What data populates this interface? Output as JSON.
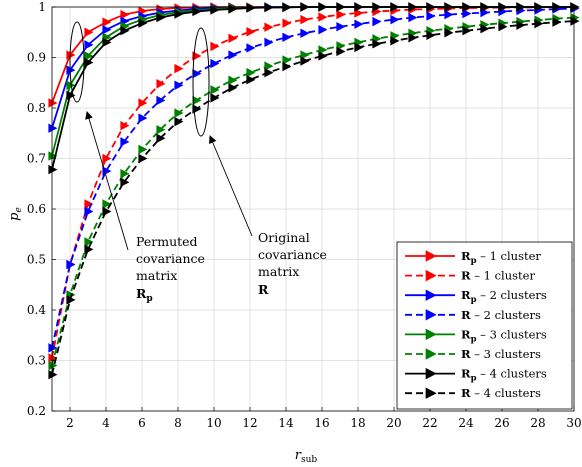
{
  "chart_data": {
    "type": "line",
    "xlabel": "r",
    "xlabel_sub": "sub",
    "ylabel": "p",
    "ylabel_sub": "e",
    "xlim": [
      1,
      30
    ],
    "ylim": [
      0.2,
      1.0
    ],
    "xticks": [
      2,
      4,
      6,
      8,
      10,
      12,
      14,
      16,
      18,
      20,
      22,
      24,
      26,
      28,
      30
    ],
    "yticks": [
      0.2,
      0.3,
      0.4,
      0.5,
      0.6,
      0.7,
      0.8,
      0.9,
      1
    ],
    "ytick_labels": [
      "0.2",
      "0.3",
      "0.4",
      "0.5",
      "0.6",
      "0.7",
      "0.8",
      "0.9",
      "1"
    ],
    "grid": true,
    "legend_position": "bottom-right",
    "x": [
      1,
      2,
      3,
      4,
      5,
      6,
      7,
      8,
      9,
      10,
      11,
      12,
      13,
      14,
      15,
      16,
      17,
      18,
      19,
      20,
      21,
      22,
      23,
      24,
      25,
      26,
      27,
      28,
      29,
      30
    ],
    "series": [
      {
        "name_bold": "R",
        "name_sub": "p",
        "name_rest": " – 1 cluster",
        "color": "#ff0000",
        "dash": false,
        "values": [
          0.81,
          0.905,
          0.95,
          0.97,
          0.985,
          0.992,
          0.996,
          0.998,
          0.999,
          1,
          1,
          1,
          1,
          1,
          1,
          1,
          1,
          1,
          1,
          1,
          1,
          1,
          1,
          1,
          1,
          1,
          1,
          1,
          1,
          1
        ]
      },
      {
        "name_bold": "R",
        "name_sub": "",
        "name_rest": " – 1 cluster",
        "color": "#ff0000",
        "dash": true,
        "values": [
          0.305,
          0.49,
          0.61,
          0.7,
          0.765,
          0.81,
          0.848,
          0.878,
          0.903,
          0.922,
          0.938,
          0.951,
          0.96,
          0.968,
          0.975,
          0.98,
          0.985,
          0.988,
          0.991,
          0.993,
          0.995,
          0.996,
          0.997,
          0.998,
          0.998,
          0.999,
          0.999,
          0.999,
          1,
          1
        ]
      },
      {
        "name_bold": "R",
        "name_sub": "p",
        "name_rest": " – 2 clusters",
        "color": "#0000ff",
        "dash": false,
        "values": [
          0.76,
          0.875,
          0.925,
          0.955,
          0.972,
          0.982,
          0.989,
          0.993,
          0.996,
          0.998,
          0.999,
          0.999,
          1,
          1,
          1,
          1,
          1,
          1,
          1,
          1,
          1,
          1,
          1,
          1,
          1,
          1,
          1,
          1,
          1,
          1
        ]
      },
      {
        "name_bold": "R",
        "name_sub": "",
        "name_rest": " – 2 clusters",
        "color": "#0000ff",
        "dash": true,
        "values": [
          0.325,
          0.49,
          0.595,
          0.675,
          0.733,
          0.78,
          0.815,
          0.845,
          0.868,
          0.888,
          0.905,
          0.919,
          0.93,
          0.94,
          0.948,
          0.955,
          0.961,
          0.966,
          0.971,
          0.975,
          0.979,
          0.982,
          0.985,
          0.987,
          0.989,
          0.991,
          0.993,
          0.994,
          0.996,
          0.997
        ]
      },
      {
        "name_bold": "R",
        "name_sub": "p",
        "name_rest": " – 3 clusters",
        "color": "#008000",
        "dash": false,
        "values": [
          0.705,
          0.845,
          0.903,
          0.94,
          0.962,
          0.975,
          0.984,
          0.99,
          0.993,
          0.996,
          0.998,
          0.999,
          0.999,
          1,
          1,
          1,
          1,
          1,
          1,
          1,
          1,
          1,
          1,
          1,
          1,
          1,
          1,
          1,
          1,
          1
        ]
      },
      {
        "name_bold": "R",
        "name_sub": "",
        "name_rest": " – 3 clusters",
        "color": "#008000",
        "dash": true,
        "values": [
          0.29,
          0.43,
          0.535,
          0.61,
          0.67,
          0.718,
          0.757,
          0.79,
          0.815,
          0.836,
          0.855,
          0.87,
          0.883,
          0.895,
          0.905,
          0.915,
          0.923,
          0.93,
          0.937,
          0.943,
          0.948,
          0.953,
          0.957,
          0.961,
          0.965,
          0.968,
          0.971,
          0.974,
          0.977,
          0.979
        ]
      },
      {
        "name_bold": "R",
        "name_sub": "p",
        "name_rest": " – 4 clusters",
        "color": "#000000",
        "dash": false,
        "values": [
          0.678,
          0.825,
          0.89,
          0.93,
          0.953,
          0.968,
          0.979,
          0.986,
          0.991,
          0.994,
          0.996,
          0.998,
          0.999,
          0.999,
          1,
          1,
          1,
          1,
          1,
          1,
          1,
          1,
          1,
          1,
          1,
          1,
          1,
          1,
          1,
          1
        ]
      },
      {
        "name_bold": "R",
        "name_sub": "",
        "name_rest": " – 4 clusters",
        "color": "#000000",
        "dash": true,
        "values": [
          0.272,
          0.42,
          0.52,
          0.595,
          0.653,
          0.7,
          0.74,
          0.773,
          0.798,
          0.82,
          0.84,
          0.856,
          0.87,
          0.882,
          0.893,
          0.903,
          0.912,
          0.92,
          0.927,
          0.933,
          0.939,
          0.944,
          0.949,
          0.953,
          0.957,
          0.961,
          0.964,
          0.967,
          0.97,
          0.972
        ]
      }
    ],
    "annotations": [
      {
        "lines": [
          "Permuted",
          "covariance",
          "matrix"
        ],
        "symbol_bold": "R",
        "symbol_sub": "p"
      },
      {
        "lines": [
          "Original",
          "covariance",
          "matrix"
        ],
        "symbol_bold": "R",
        "symbol_sub": ""
      }
    ]
  }
}
